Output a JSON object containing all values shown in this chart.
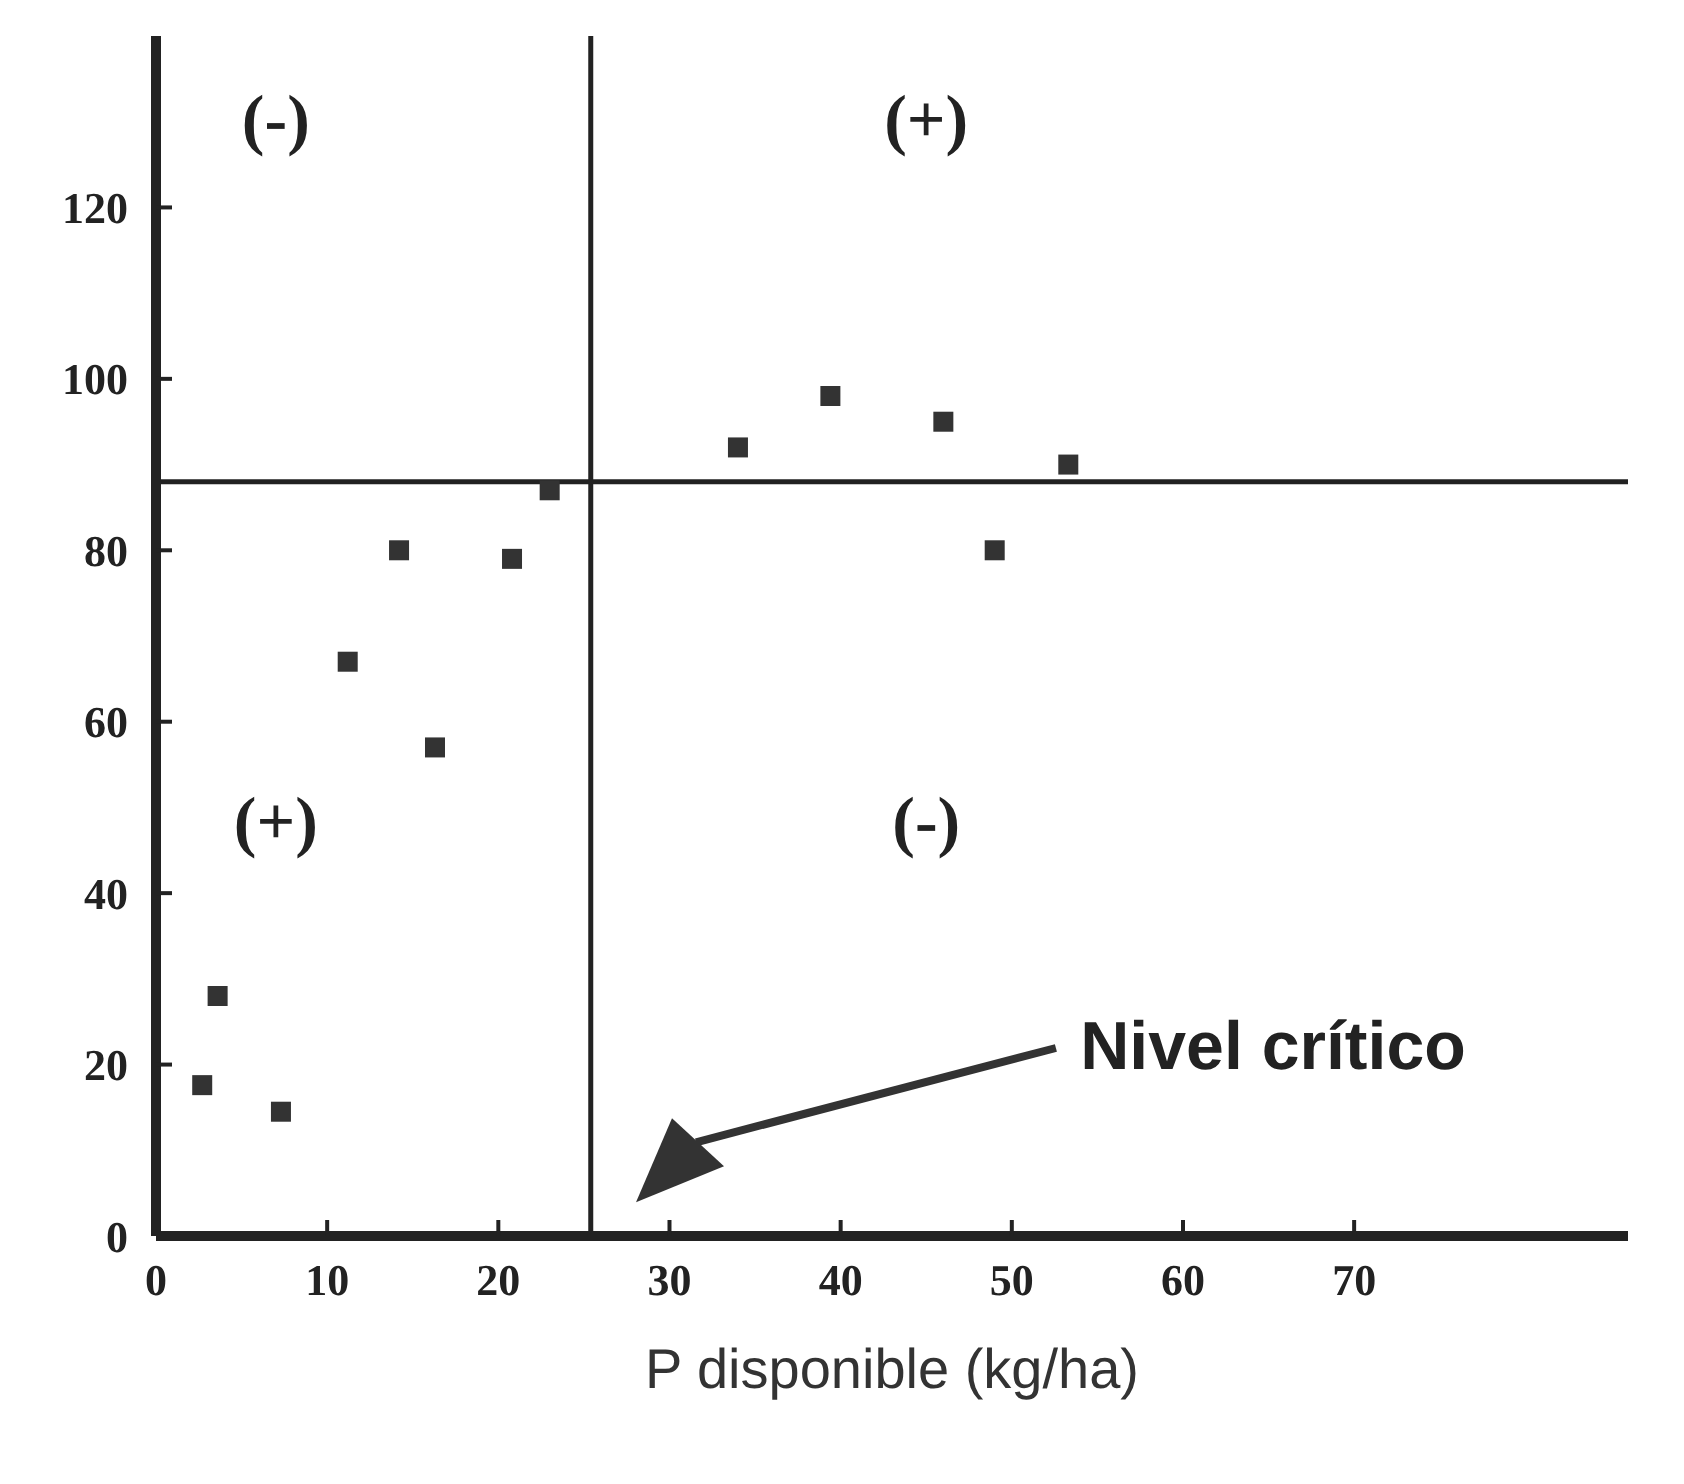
{
  "chart_data": {
    "type": "scatter",
    "xlabel": "P disponible (kg/ha)",
    "x": [
      2.7,
      3.6,
      7.3,
      11.2,
      14.2,
      16.3,
      20.8,
      23,
      34,
      39.4,
      46,
      49,
      53.3
    ],
    "values": [
      17.6,
      28,
      14.5,
      67,
      80,
      57,
      79,
      87,
      92,
      98,
      95,
      80,
      90
    ],
    "color": "#333333",
    "marker": "square",
    "xlim": [
      0,
      86
    ],
    "xticks": [
      0,
      10,
      20,
      30,
      40,
      50,
      60,
      70
    ],
    "ylim": [
      0,
      140
    ],
    "yticks": [
      0,
      20,
      40,
      60,
      80,
      100,
      120
    ],
    "ref_lines": [
      {
        "axis": "x",
        "value": 25.4,
        "label": null,
        "color": "#222222"
      },
      {
        "axis": "y",
        "value": 88,
        "label": null,
        "color": "#222222"
      }
    ],
    "annotations": [
      "(-)",
      "(+)",
      "(+)",
      "(-)",
      "Nivel crítico"
    ]
  }
}
